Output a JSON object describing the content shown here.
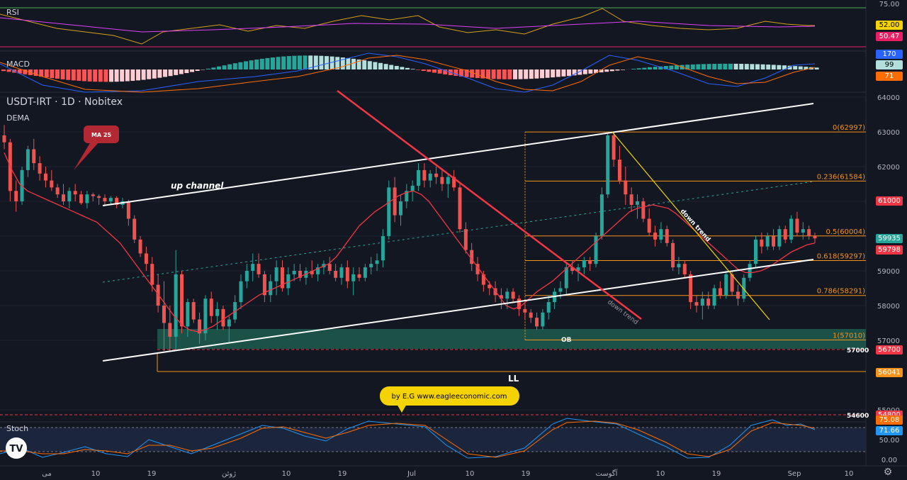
{
  "header": {
    "symbol": "USDT-IRT",
    "interval": "1D",
    "exchange": "Nobitex",
    "indicator": "DEMA"
  },
  "rsi": {
    "label": "RSI",
    "value_a": "52.00",
    "value_b": "50.47",
    "top_tick": "75.00"
  },
  "macd": {
    "label": "MACD",
    "value_a": "170",
    "value_b": "99",
    "value_c": "71"
  },
  "stoch": {
    "label": "Stoch",
    "value_a": "75.08",
    "value_b": "71.66",
    "tick_50": "50.00",
    "tick_0": "0.00"
  },
  "annotations": {
    "ma_callout": "MA 25",
    "up_channel": "up channel",
    "down_trend_red": "down trend",
    "down_trend_yellow": "down trend",
    "ob": "OB",
    "ll": "LL",
    "watermark": "by E.G www.eagleeconomic.com",
    "level_57000": "57000",
    "level_54600": "54600"
  },
  "fib_labels": [
    "0(62997)",
    "0.236(61584)",
    "0.5(60004)",
    "0.618(59297)",
    "0.786(58291)",
    "1(57010)"
  ],
  "price_badges": {
    "b61000": "61000",
    "b59935": "59935",
    "b59798": "59798",
    "b56700": "56700",
    "b56041": "56041",
    "b54800": "54800"
  },
  "colors": {
    "background": "#131722",
    "bull": "#26a69a",
    "bear": "#ef5350",
    "ma": "#f23645",
    "fib": "#f7931a",
    "channel": "#ffffff",
    "trend_yellow": "#f5d300",
    "ob_zone": "#1e5c4f"
  },
  "x_labels": [
    "می",
    "10",
    "19",
    "ژوئن",
    "10",
    "19",
    "Jul",
    "10",
    "19",
    "آگوست",
    "10",
    "19",
    "Sep",
    "10"
  ],
  "chart_data": {
    "type": "candlestick",
    "timeframe": "1D",
    "y_axis_ticks": [
      55000,
      57000,
      58000,
      59000,
      60000,
      61000,
      62000,
      63000,
      64000
    ],
    "ylim": [
      54000,
      64400
    ],
    "candles": [
      [
        62900,
        63200,
        62500,
        62700
      ],
      [
        62700,
        62800,
        61000,
        61300
      ],
      [
        61300,
        61600,
        60700,
        61000
      ],
      [
        61000,
        62000,
        60900,
        61900
      ],
      [
        61900,
        62600,
        61700,
        62500
      ],
      [
        62500,
        62800,
        61900,
        62100
      ],
      [
        62100,
        62300,
        61600,
        61800
      ],
      [
        61800,
        62000,
        61400,
        61600
      ],
      [
        61600,
        61900,
        61300,
        61400
      ],
      [
        61400,
        61500,
        61100,
        61200
      ],
      [
        61200,
        61500,
        60900,
        61000
      ],
      [
        61000,
        61400,
        60800,
        61300
      ],
      [
        61300,
        61500,
        61000,
        61200
      ],
      [
        61200,
        61300,
        60900,
        60950
      ],
      [
        60950,
        61300,
        60800,
        61200
      ],
      [
        61200,
        61250,
        61000,
        61150
      ],
      [
        61150,
        61200,
        60900,
        61100
      ],
      [
        61100,
        61200,
        60900,
        61000
      ],
      [
        61000,
        61150,
        60900,
        61100
      ],
      [
        61100,
        61150,
        60800,
        60900
      ],
      [
        60900,
        61100,
        60800,
        61000
      ],
      [
        61000,
        61050,
        60300,
        60500
      ],
      [
        60500,
        60600,
        59800,
        59900
      ],
      [
        59900,
        60000,
        59400,
        59500
      ],
      [
        59500,
        59700,
        59000,
        59200
      ],
      [
        59200,
        59400,
        58400,
        58600
      ],
      [
        58600,
        58900,
        57800,
        58000
      ],
      [
        58000,
        58700,
        56700,
        57500
      ],
      [
        57500,
        58000,
        56700,
        57100
      ],
      [
        57100,
        59600,
        56700,
        58900
      ],
      [
        58900,
        59000,
        57200,
        57400
      ],
      [
        57400,
        58200,
        57100,
        58100
      ],
      [
        58100,
        58200,
        57500,
        57600
      ],
      [
        57600,
        57800,
        56900,
        57200
      ],
      [
        57200,
        58300,
        57000,
        58200
      ],
      [
        58200,
        58400,
        57500,
        57700
      ],
      [
        57700,
        58100,
        57300,
        57900
      ],
      [
        57900,
        58000,
        57300,
        57400
      ],
      [
        57400,
        57700,
        56900,
        57600
      ],
      [
        57600,
        58300,
        57500,
        58100
      ],
      [
        58100,
        58900,
        57900,
        58700
      ],
      [
        58700,
        59200,
        58500,
        59000
      ],
      [
        59000,
        59500,
        58700,
        59200
      ],
      [
        59200,
        59500,
        58800,
        58900
      ],
      [
        58900,
        59000,
        58100,
        58300
      ],
      [
        58300,
        58900,
        58100,
        58700
      ],
      [
        58700,
        59300,
        58300,
        59100
      ],
      [
        59100,
        59300,
        58400,
        58500
      ],
      [
        58500,
        59100,
        58300,
        58900
      ],
      [
        58900,
        59200,
        58700,
        59000
      ],
      [
        59000,
        59200,
        58700,
        58800
      ],
      [
        58800,
        59100,
        58600,
        59000
      ],
      [
        59000,
        59300,
        58800,
        58900
      ],
      [
        58900,
        59200,
        58700,
        59100
      ],
      [
        59100,
        59300,
        58900,
        59200
      ],
      [
        59200,
        59400,
        58900,
        59000
      ],
      [
        59000,
        59200,
        58700,
        58800
      ],
      [
        58800,
        59200,
        58600,
        59100
      ],
      [
        59100,
        59300,
        58500,
        58700
      ],
      [
        58700,
        59100,
        58300,
        58900
      ],
      [
        58900,
        59100,
        58700,
        58800
      ],
      [
        58800,
        59200,
        58700,
        59100
      ],
      [
        59100,
        59400,
        58900,
        59200
      ],
      [
        59200,
        59500,
        59000,
        59300
      ],
      [
        59300,
        60200,
        59100,
        60000
      ],
      [
        60000,
        61600,
        59900,
        61400
      ],
      [
        61400,
        61700,
        60400,
        60600
      ],
      [
        60600,
        61200,
        60300,
        61000
      ],
      [
        61000,
        61500,
        60800,
        61300
      ],
      [
        61300,
        61600,
        61000,
        61450
      ],
      [
        61450,
        62100,
        61300,
        61900
      ],
      [
        61900,
        62100,
        61400,
        61600
      ],
      [
        61600,
        61900,
        61400,
        61800
      ],
      [
        61800,
        62000,
        61500,
        61700
      ],
      [
        61700,
        61900,
        61300,
        61500
      ],
      [
        61500,
        61800,
        61100,
        61700
      ],
      [
        61700,
        61900,
        61300,
        61400
      ],
      [
        61400,
        61500,
        60100,
        60200
      ],
      [
        60200,
        60400,
        59500,
        59600
      ],
      [
        59600,
        59800,
        59000,
        59200
      ],
      [
        59200,
        59400,
        58700,
        58900
      ],
      [
        58900,
        59000,
        58400,
        58600
      ],
      [
        58600,
        58700,
        58300,
        58500
      ],
      [
        58500,
        58700,
        58100,
        58300
      ],
      [
        58300,
        58500,
        57900,
        58200
      ],
      [
        58200,
        58500,
        57900,
        58400
      ],
      [
        58400,
        58500,
        58100,
        58200
      ],
      [
        58200,
        58300,
        57700,
        57900
      ],
      [
        57900,
        58100,
        57600,
        57800
      ],
      [
        57800,
        57900,
        57500,
        57650
      ],
      [
        57650,
        57800,
        57300,
        57400
      ],
      [
        57400,
        57900,
        57300,
        57800
      ],
      [
        57800,
        58300,
        57600,
        58100
      ],
      [
        58100,
        58500,
        57900,
        58400
      ],
      [
        58400,
        58700,
        58200,
        58500
      ],
      [
        58500,
        59200,
        58300,
        59100
      ],
      [
        59100,
        59300,
        58900,
        59000
      ],
      [
        59000,
        59200,
        58700,
        59100
      ],
      [
        59100,
        59400,
        58900,
        59300
      ],
      [
        59300,
        59400,
        59000,
        59200
      ],
      [
        59200,
        60100,
        59100,
        60000
      ],
      [
        60000,
        61400,
        59900,
        61200
      ],
      [
        61200,
        63000,
        61100,
        62900
      ],
      [
        62900,
        63000,
        62000,
        62200
      ],
      [
        62200,
        62600,
        61500,
        61600
      ],
      [
        61600,
        62000,
        60900,
        61200
      ],
      [
        61200,
        61400,
        60700,
        60900
      ],
      [
        60900,
        61200,
        60500,
        61000
      ],
      [
        61000,
        61100,
        60400,
        60500
      ],
      [
        60500,
        60800,
        60000,
        60100
      ],
      [
        60100,
        60300,
        59700,
        59900
      ],
      [
        59900,
        60400,
        59800,
        60200
      ],
      [
        60200,
        60300,
        59700,
        59800
      ],
      [
        59800,
        59900,
        59000,
        59100
      ],
      [
        59100,
        59400,
        58900,
        59200
      ],
      [
        59200,
        59300,
        58800,
        58900
      ],
      [
        58900,
        59000,
        57900,
        58100
      ],
      [
        58100,
        58300,
        57800,
        58000
      ],
      [
        58000,
        58400,
        57600,
        58200
      ],
      [
        58200,
        58400,
        57900,
        58000
      ],
      [
        58000,
        58600,
        57900,
        58500
      ],
      [
        58500,
        58700,
        58200,
        58300
      ],
      [
        58300,
        59000,
        58200,
        58900
      ],
      [
        58900,
        59000,
        58300,
        58400
      ],
      [
        58400,
        58600,
        58000,
        58200
      ],
      [
        58200,
        58900,
        58100,
        58800
      ],
      [
        58800,
        59300,
        58700,
        59200
      ],
      [
        59200,
        60000,
        59100,
        59900
      ],
      [
        59900,
        60100,
        59500,
        59700
      ],
      [
        59700,
        60100,
        59600,
        60000
      ],
      [
        60000,
        60200,
        59600,
        59700
      ],
      [
        59700,
        60300,
        59600,
        60200
      ],
      [
        60200,
        60300,
        59800,
        59900
      ],
      [
        59900,
        60600,
        59800,
        60500
      ],
      [
        60500,
        60700,
        60000,
        60100
      ],
      [
        60100,
        60400,
        59900,
        60200
      ],
      [
        60200,
        60300,
        59900,
        60000
      ],
      [
        60000,
        60100,
        59800,
        59935
      ]
    ],
    "ma25": [
      62400,
      61900,
      61500,
      61300,
      61200,
      61100,
      61000,
      60900,
      60800,
      60700,
      60600,
      60500,
      60400,
      60200,
      60000,
      59800,
      59500,
      59200,
      58900,
      58600,
      58300,
      58000,
      57700,
      57450,
      57300,
      57250,
      57300,
      57400,
      57550,
      57700,
      57850,
      58000,
      58150,
      58300,
      58400,
      58500,
      58600,
      58700,
      58800,
      58900,
      59000,
      59100,
      59200,
      59400,
      59700,
      60000,
      60300,
      60500,
      60700,
      60850,
      61000,
      61150,
      61250,
      61300,
      61200,
      61000,
      60700,
      60400,
      60100,
      59800,
      59500,
      59200,
      58900,
      58600,
      58300,
      58000,
      57900,
      58000,
      58200,
      58400,
      58550,
      58700,
      58900,
      59100,
      59300,
      59500,
      59700,
      59900,
      60100,
      60300,
      60500,
      60700,
      60800,
      60850,
      60900,
      60850,
      60800,
      60650,
      60450,
      60250,
      60050,
      59850,
      59650,
      59450,
      59250,
      59050,
      58950,
      58950,
      59000,
      59100,
      59250,
      59400,
      59550,
      59650,
      59750,
      59800
    ]
  }
}
